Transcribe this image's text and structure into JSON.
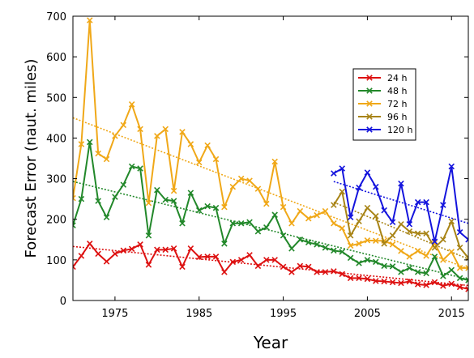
{
  "chart_data": {
    "type": "line",
    "xlabel": "Year",
    "ylabel": "Forecast Error (naut. miles)",
    "xlim": [
      1970,
      2017
    ],
    "ylim": [
      0,
      700
    ],
    "xticks": [
      1975,
      1985,
      1995,
      2005,
      2015
    ],
    "yticks": [
      0,
      100,
      200,
      300,
      400,
      500,
      600,
      700
    ],
    "grid": false,
    "legend_position": "upper-right",
    "series": [
      {
        "name": "24 h",
        "color": "#dd1111",
        "x": [
          1970,
          1971,
          1972,
          1973,
          1974,
          1975,
          1976,
          1977,
          1978,
          1979,
          1980,
          1981,
          1982,
          1983,
          1984,
          1985,
          1986,
          1987,
          1988,
          1989,
          1990,
          1991,
          1992,
          1993,
          1994,
          1995,
          1996,
          1997,
          1998,
          1999,
          2000,
          2001,
          2002,
          2003,
          2004,
          2005,
          2006,
          2007,
          2008,
          2009,
          2010,
          2011,
          2012,
          2013,
          2014,
          2015,
          2016,
          2017
        ],
        "y": [
          83,
          110,
          140,
          115,
          96,
          115,
          123,
          127,
          138,
          88,
          125,
          125,
          128,
          83,
          128,
          107,
          108,
          108,
          70,
          95,
          100,
          112,
          85,
          100,
          100,
          83,
          70,
          85,
          83,
          70,
          70,
          72,
          65,
          55,
          55,
          53,
          48,
          47,
          45,
          43,
          47,
          40,
          38,
          45,
          36,
          41,
          33,
          28
        ],
        "trend": [
          [
            1970,
            133
          ],
          [
            2017,
            37
          ]
        ]
      },
      {
        "name": "48 h",
        "color": "#22882a",
        "x": [
          1970,
          1971,
          1972,
          1973,
          1974,
          1975,
          1976,
          1977,
          1978,
          1979,
          1980,
          1981,
          1982,
          1983,
          1984,
          1985,
          1986,
          1987,
          1988,
          1989,
          1990,
          1991,
          1992,
          1993,
          1994,
          1995,
          1996,
          1997,
          1998,
          1999,
          2000,
          2001,
          2002,
          2003,
          2004,
          2005,
          2006,
          2007,
          2008,
          2009,
          2010,
          2011,
          2012,
          2013,
          2014,
          2015,
          2016,
          2017
        ],
        "y": [
          185,
          250,
          390,
          245,
          205,
          255,
          285,
          330,
          325,
          160,
          272,
          248,
          245,
          190,
          265,
          222,
          232,
          228,
          140,
          190,
          190,
          193,
          170,
          180,
          211,
          160,
          128,
          150,
          143,
          138,
          130,
          123,
          120,
          105,
          92,
          100,
          95,
          85,
          84,
          70,
          80,
          70,
          67,
          108,
          60,
          75,
          55,
          50
        ],
        "trend": [
          [
            1970,
            293
          ],
          [
            2017,
            52
          ]
        ]
      },
      {
        "name": "72 h",
        "color": "#f0a818",
        "x": [
          1970,
          1971,
          1972,
          1973,
          1974,
          1975,
          1976,
          1977,
          1978,
          1979,
          1980,
          1981,
          1982,
          1983,
          1984,
          1985,
          1986,
          1987,
          1988,
          1989,
          1990,
          1991,
          1992,
          1993,
          1994,
          1995,
          1996,
          1997,
          1998,
          1999,
          2000,
          2001,
          2002,
          2003,
          2004,
          2005,
          2006,
          2007,
          2008,
          2009,
          2010,
          2011,
          2012,
          2013,
          2014,
          2015,
          2016,
          2017
        ],
        "y": [
          252,
          385,
          690,
          362,
          348,
          405,
          432,
          483,
          422,
          240,
          405,
          422,
          270,
          415,
          385,
          340,
          382,
          348,
          230,
          280,
          300,
          295,
          275,
          238,
          342,
          230,
          190,
          220,
          202,
          210,
          220,
          190,
          178,
          135,
          140,
          148,
          147,
          147,
          138,
          122,
          108,
          122,
          110,
          142,
          100,
          120,
          80,
          80
        ],
        "trend": [
          [
            1970,
            450
          ],
          [
            2017,
            78
          ]
        ]
      },
      {
        "name": "96 h",
        "color": "#a88416",
        "x": [
          2001,
          2002,
          2003,
          2004,
          2005,
          2006,
          2007,
          2008,
          2009,
          2010,
          2011,
          2012,
          2013,
          2014,
          2015,
          2016,
          2017
        ],
        "y": [
          235,
          268,
          160,
          195,
          228,
          208,
          140,
          160,
          188,
          170,
          165,
          165,
          130,
          150,
          195,
          130,
          105
        ],
        "trend": [
          [
            2001,
            242
          ],
          [
            2017,
            102
          ]
        ]
      },
      {
        "name": "120 h",
        "color": "#1414dd",
        "x": [
          2001,
          2002,
          2003,
          2004,
          2005,
          2006,
          2007,
          2008,
          2009,
          2010,
          2011,
          2012,
          2013,
          2014,
          2015,
          2016,
          2017
        ],
        "y": [
          313,
          325,
          205,
          278,
          315,
          280,
          222,
          193,
          288,
          188,
          242,
          242,
          145,
          235,
          330,
          168,
          150
        ],
        "trend": [
          [
            2001,
            293
          ],
          [
            2017,
            190
          ]
        ]
      }
    ]
  }
}
